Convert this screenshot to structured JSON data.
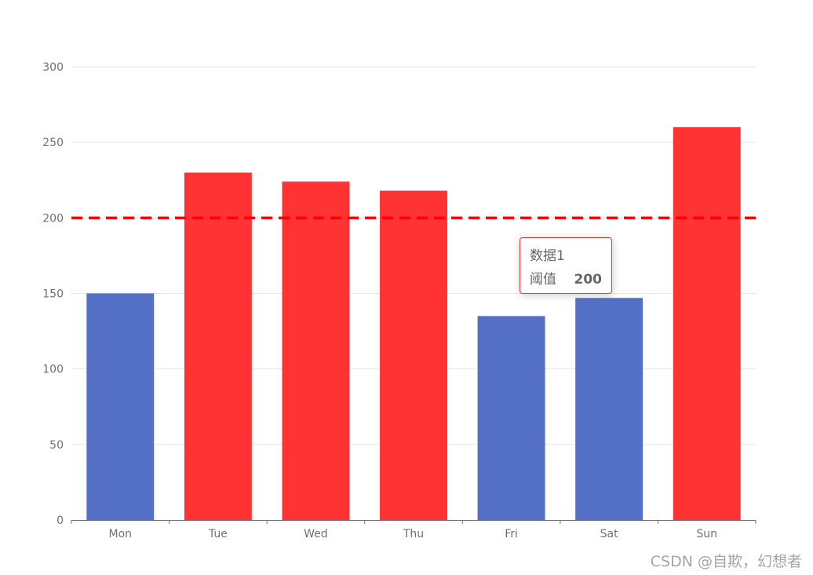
{
  "chart_data": {
    "type": "bar",
    "categories": [
      "Mon",
      "Tue",
      "Wed",
      "Thu",
      "Fri",
      "Sat",
      "Sun"
    ],
    "values": [
      150,
      230,
      224,
      218,
      135,
      147,
      260
    ],
    "ylim": [
      0,
      300
    ],
    "yticks": [
      0,
      50,
      100,
      150,
      200,
      250,
      300
    ],
    "grid": true,
    "threshold": {
      "name": "数据1",
      "label": "阈值",
      "value": 200,
      "style": "dashed",
      "color": "#ff0000"
    },
    "colors": {
      "below_threshold": "#5470c6",
      "above_threshold": "#ff3333"
    }
  },
  "tooltip": {
    "title": "数据1",
    "label": "阈值",
    "value": "200"
  },
  "watermark": "CSDN @自欺，幻想者"
}
